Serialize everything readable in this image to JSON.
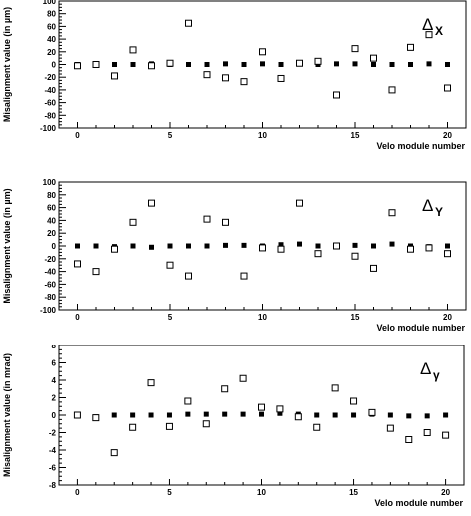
{
  "chart_data": [
    {
      "type": "scatter",
      "xlabel": "Velo module number",
      "ylabel": "Misalignment value (in µm)",
      "legend": {
        "symbol": "Δ",
        "subscript": "X"
      },
      "legend_placement": "top-right",
      "xlim": [
        -1,
        21
      ],
      "ylim": [
        -100,
        100
      ],
      "xticks": [
        0,
        5,
        10,
        15,
        20
      ],
      "yticks": [
        -100,
        -80,
        -60,
        -40,
        -20,
        0,
        20,
        40,
        60,
        80,
        100
      ],
      "grid": false,
      "series": [
        {
          "marker": "filled-square",
          "x": [
            0,
            1,
            2,
            3,
            4,
            5,
            6,
            7,
            8,
            9,
            10,
            11,
            12,
            13,
            14,
            15,
            16,
            17,
            18,
            19,
            20
          ],
          "y": [
            0,
            1,
            0,
            0,
            1,
            0,
            0,
            0,
            1,
            0,
            1,
            0,
            2,
            0,
            1,
            1,
            0,
            0,
            0,
            1,
            0
          ]
        },
        {
          "marker": "open-square",
          "x": [
            0,
            1,
            2,
            3,
            4,
            5,
            6,
            7,
            8,
            9,
            10,
            11,
            12,
            13,
            14,
            15,
            16,
            17,
            18,
            19,
            20
          ],
          "y": [
            -2,
            0,
            -18,
            23,
            -2,
            2,
            65,
            -16,
            -21,
            -27,
            20,
            -22,
            2,
            5,
            -48,
            25,
            10,
            -40,
            27,
            47,
            -37
          ]
        }
      ]
    },
    {
      "type": "scatter",
      "xlabel": "Velo module number",
      "ylabel": "Misalignment value (in µm)",
      "legend": {
        "symbol": "Δ",
        "subscript": "Y"
      },
      "legend_placement": "top-right",
      "xlim": [
        -1,
        21
      ],
      "ylim": [
        -100,
        100
      ],
      "xticks": [
        0,
        5,
        10,
        15,
        20
      ],
      "yticks": [
        -100,
        -80,
        -60,
        -40,
        -20,
        0,
        20,
        40,
        60,
        80,
        100
      ],
      "grid": false,
      "series": [
        {
          "marker": "filled-square",
          "x": [
            0,
            1,
            2,
            3,
            4,
            5,
            6,
            7,
            8,
            9,
            10,
            11,
            12,
            13,
            14,
            15,
            16,
            17,
            18,
            19,
            20
          ],
          "y": [
            0,
            0,
            -1,
            0,
            -2,
            0,
            0,
            0,
            1,
            1,
            0,
            2,
            3,
            0,
            0,
            1,
            0,
            3,
            0,
            -1,
            0
          ]
        },
        {
          "marker": "open-square",
          "x": [
            0,
            1,
            2,
            3,
            4,
            5,
            6,
            7,
            8,
            9,
            10,
            11,
            12,
            13,
            14,
            15,
            16,
            17,
            18,
            19,
            20
          ],
          "y": [
            -28,
            -40,
            -5,
            37,
            67,
            -30,
            -47,
            42,
            37,
            -47,
            -3,
            -5,
            67,
            -12,
            0,
            -16,
            -35,
            52,
            -5,
            -3,
            -12
          ]
        }
      ]
    },
    {
      "type": "scatter",
      "xlabel": "Velo module number",
      "ylabel": "Misalignment value (in mrad)",
      "legend": {
        "symbol": "Δ",
        "subscript": "γ"
      },
      "legend_placement": "top-right",
      "xlim": [
        -1,
        21
      ],
      "ylim": [
        -8,
        8
      ],
      "xticks": [
        0,
        5,
        10,
        15,
        20
      ],
      "yticks": [
        -8,
        -6,
        -4,
        -2,
        0,
        2,
        4,
        6,
        8
      ],
      "grid": false,
      "series": [
        {
          "marker": "filled-square",
          "x": [
            0,
            1,
            2,
            3,
            4,
            5,
            6,
            7,
            8,
            9,
            10,
            11,
            12,
            13,
            14,
            15,
            16,
            17,
            18,
            19,
            20
          ],
          "y": [
            0,
            -0.2,
            0,
            0,
            0,
            0,
            0.1,
            0.1,
            0.1,
            0.1,
            0.1,
            0.2,
            0.1,
            0,
            0,
            0,
            0.1,
            0,
            -0.1,
            -0.1,
            0
          ]
        },
        {
          "marker": "open-square",
          "x": [
            0,
            1,
            2,
            3,
            4,
            5,
            6,
            7,
            8,
            9,
            10,
            11,
            12,
            13,
            14,
            15,
            16,
            17,
            18,
            19,
            20
          ],
          "y": [
            0,
            -0.3,
            -4.3,
            -1.4,
            3.7,
            -1.3,
            1.6,
            -1,
            3,
            4.2,
            0.9,
            0.7,
            -0.2,
            -1.4,
            3.1,
            1.6,
            0.3,
            -1.5,
            -2.8,
            -2,
            -2.3
          ]
        }
      ]
    }
  ]
}
